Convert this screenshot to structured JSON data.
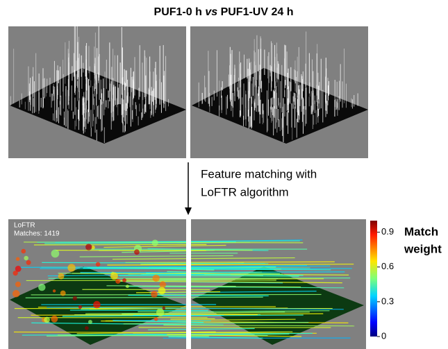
{
  "title": {
    "left": "PUF1-0 h",
    "italic": "vs",
    "right": "PUF1-UV 24 h"
  },
  "caption": {
    "lines": [
      "Feature matching with",
      "LoFTR algorithm"
    ]
  },
  "overlay": {
    "lines": [
      "LoFTR",
      "Matches: 1419"
    ]
  },
  "colorbar": {
    "lim": [
      0,
      1
    ],
    "ticks": [
      0,
      0.3,
      0.6,
      0.9
    ],
    "label": [
      "Match",
      "weight"
    ]
  }
}
